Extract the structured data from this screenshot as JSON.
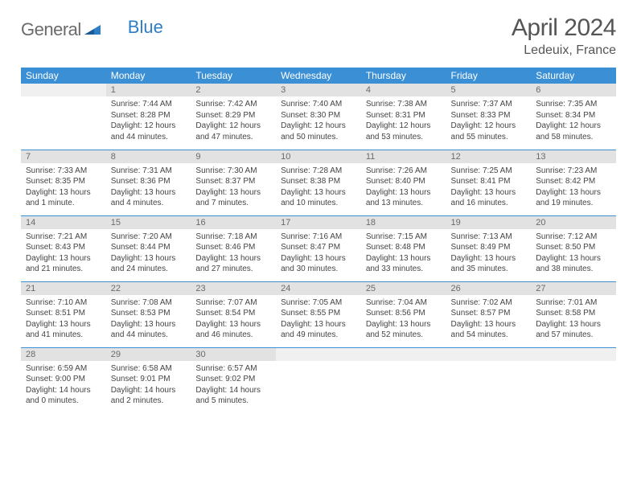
{
  "logo": {
    "general": "General",
    "blue": "Blue"
  },
  "title": "April 2024",
  "location": "Ledeuix, France",
  "colors": {
    "header_bg": "#3b8fd4",
    "header_text": "#ffffff",
    "daynum_bg": "#e2e2e2",
    "daynum_text": "#6a6a6a",
    "rule": "#3b8fd4",
    "text": "#444444",
    "logo_gray": "#6b6b6b",
    "logo_blue": "#2d7dc7"
  },
  "weekdays": [
    "Sunday",
    "Monday",
    "Tuesday",
    "Wednesday",
    "Thursday",
    "Friday",
    "Saturday"
  ],
  "days": {
    "1": {
      "sunrise": "7:44 AM",
      "sunset": "8:28 PM",
      "daylight": "12 hours and 44 minutes."
    },
    "2": {
      "sunrise": "7:42 AM",
      "sunset": "8:29 PM",
      "daylight": "12 hours and 47 minutes."
    },
    "3": {
      "sunrise": "7:40 AM",
      "sunset": "8:30 PM",
      "daylight": "12 hours and 50 minutes."
    },
    "4": {
      "sunrise": "7:38 AM",
      "sunset": "8:31 PM",
      "daylight": "12 hours and 53 minutes."
    },
    "5": {
      "sunrise": "7:37 AM",
      "sunset": "8:33 PM",
      "daylight": "12 hours and 55 minutes."
    },
    "6": {
      "sunrise": "7:35 AM",
      "sunset": "8:34 PM",
      "daylight": "12 hours and 58 minutes."
    },
    "7": {
      "sunrise": "7:33 AM",
      "sunset": "8:35 PM",
      "daylight": "13 hours and 1 minute."
    },
    "8": {
      "sunrise": "7:31 AM",
      "sunset": "8:36 PM",
      "daylight": "13 hours and 4 minutes."
    },
    "9": {
      "sunrise": "7:30 AM",
      "sunset": "8:37 PM",
      "daylight": "13 hours and 7 minutes."
    },
    "10": {
      "sunrise": "7:28 AM",
      "sunset": "8:38 PM",
      "daylight": "13 hours and 10 minutes."
    },
    "11": {
      "sunrise": "7:26 AM",
      "sunset": "8:40 PM",
      "daylight": "13 hours and 13 minutes."
    },
    "12": {
      "sunrise": "7:25 AM",
      "sunset": "8:41 PM",
      "daylight": "13 hours and 16 minutes."
    },
    "13": {
      "sunrise": "7:23 AM",
      "sunset": "8:42 PM",
      "daylight": "13 hours and 19 minutes."
    },
    "14": {
      "sunrise": "7:21 AM",
      "sunset": "8:43 PM",
      "daylight": "13 hours and 21 minutes."
    },
    "15": {
      "sunrise": "7:20 AM",
      "sunset": "8:44 PM",
      "daylight": "13 hours and 24 minutes."
    },
    "16": {
      "sunrise": "7:18 AM",
      "sunset": "8:46 PM",
      "daylight": "13 hours and 27 minutes."
    },
    "17": {
      "sunrise": "7:16 AM",
      "sunset": "8:47 PM",
      "daylight": "13 hours and 30 minutes."
    },
    "18": {
      "sunrise": "7:15 AM",
      "sunset": "8:48 PM",
      "daylight": "13 hours and 33 minutes."
    },
    "19": {
      "sunrise": "7:13 AM",
      "sunset": "8:49 PM",
      "daylight": "13 hours and 35 minutes."
    },
    "20": {
      "sunrise": "7:12 AM",
      "sunset": "8:50 PM",
      "daylight": "13 hours and 38 minutes."
    },
    "21": {
      "sunrise": "7:10 AM",
      "sunset": "8:51 PM",
      "daylight": "13 hours and 41 minutes."
    },
    "22": {
      "sunrise": "7:08 AM",
      "sunset": "8:53 PM",
      "daylight": "13 hours and 44 minutes."
    },
    "23": {
      "sunrise": "7:07 AM",
      "sunset": "8:54 PM",
      "daylight": "13 hours and 46 minutes."
    },
    "24": {
      "sunrise": "7:05 AM",
      "sunset": "8:55 PM",
      "daylight": "13 hours and 49 minutes."
    },
    "25": {
      "sunrise": "7:04 AM",
      "sunset": "8:56 PM",
      "daylight": "13 hours and 52 minutes."
    },
    "26": {
      "sunrise": "7:02 AM",
      "sunset": "8:57 PM",
      "daylight": "13 hours and 54 minutes."
    },
    "27": {
      "sunrise": "7:01 AM",
      "sunset": "8:58 PM",
      "daylight": "13 hours and 57 minutes."
    },
    "28": {
      "sunrise": "6:59 AM",
      "sunset": "9:00 PM",
      "daylight": "14 hours and 0 minutes."
    },
    "29": {
      "sunrise": "6:58 AM",
      "sunset": "9:01 PM",
      "daylight": "14 hours and 2 minutes."
    },
    "30": {
      "sunrise": "6:57 AM",
      "sunset": "9:02 PM",
      "daylight": "14 hours and 5 minutes."
    }
  },
  "grid": [
    [
      null,
      1,
      2,
      3,
      4,
      5,
      6
    ],
    [
      7,
      8,
      9,
      10,
      11,
      12,
      13
    ],
    [
      14,
      15,
      16,
      17,
      18,
      19,
      20
    ],
    [
      21,
      22,
      23,
      24,
      25,
      26,
      27
    ],
    [
      28,
      29,
      30,
      null,
      null,
      null,
      null
    ]
  ],
  "labels": {
    "sunrise": "Sunrise:",
    "sunset": "Sunset:",
    "daylight": "Daylight:"
  }
}
